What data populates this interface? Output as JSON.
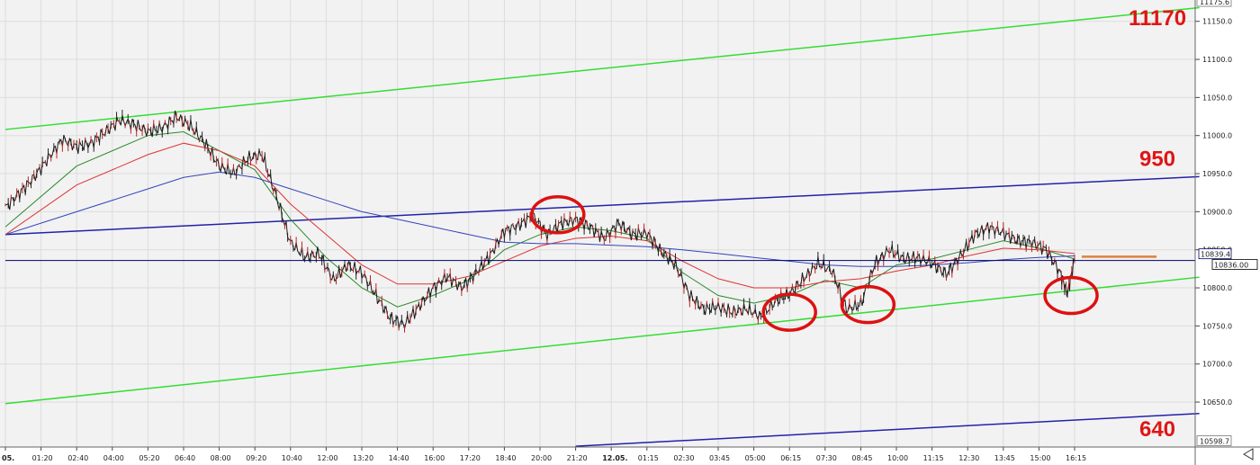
{
  "chart_data": {
    "type": "line",
    "title": "",
    "xlabel": "",
    "ylabel": "",
    "ylim": [
      10591,
      11178
    ],
    "y_ticks": [
      11150,
      11100,
      11050,
      11000,
      10950,
      10900,
      10850,
      10800,
      10750,
      10700,
      10650
    ],
    "y_tick_labels": [
      "11150.0",
      "11100.0",
      "11050.0",
      "11000.0",
      "10950.0",
      "10900.0",
      "10850.0",
      "10800.0",
      "10750.0",
      "10700.0",
      "10650.0"
    ],
    "y_axis_extremes": [
      {
        "label": "11175.6",
        "y": 11175.6
      },
      {
        "label": "10598.7",
        "y": 10598.7
      }
    ],
    "price_markers": [
      {
        "label": "10839.4",
        "y": 10839.4,
        "color": "#000066"
      },
      {
        "label": "10836.00",
        "y": 10836.0,
        "color": "#000000"
      }
    ],
    "x_tick_labels": [
      "05.",
      "01:20",
      "02:40",
      "04:00",
      "05:20",
      "06:40",
      "08:00",
      "09:20",
      "10:40",
      "12:00",
      "13:20",
      "14:40",
      "16:00",
      "17:20",
      "18:40",
      "20:00",
      "21:20",
      "12.05.",
      "01:15",
      "02:30",
      "03:45",
      "05:00",
      "06:15",
      "07:30",
      "08:45",
      "10:00",
      "11:15",
      "12:30",
      "13:45",
      "15:00",
      "16:15"
    ],
    "x_tick_index": [
      0,
      1,
      2,
      3,
      4,
      5,
      6,
      7,
      8,
      9,
      10,
      11,
      12,
      13,
      14,
      15,
      16,
      17,
      18,
      19,
      20,
      21,
      22,
      23,
      24,
      25,
      26,
      27,
      28,
      29,
      30
    ],
    "x_range": [
      0,
      33.5
    ],
    "price_series": [
      [
        0,
        10905
      ],
      [
        0.4,
        10925
      ],
      [
        0.8,
        10945
      ],
      [
        1.2,
        10970
      ],
      [
        1.6,
        10995
      ],
      [
        2.0,
        10985
      ],
      [
        2.4,
        10990
      ],
      [
        2.8,
        11005
      ],
      [
        3.2,
        11020
      ],
      [
        3.6,
        11015
      ],
      [
        4.0,
        11005
      ],
      [
        4.4,
        11010
      ],
      [
        4.8,
        11025
      ],
      [
        5.2,
        11012
      ],
      [
        5.6,
        10990
      ],
      [
        6.0,
        10960
      ],
      [
        6.4,
        10950
      ],
      [
        6.8,
        10970
      ],
      [
        7.2,
        10975
      ],
      [
        7.6,
        10920
      ],
      [
        8.0,
        10860
      ],
      [
        8.4,
        10840
      ],
      [
        8.8,
        10845
      ],
      [
        9.2,
        10810
      ],
      [
        9.6,
        10830
      ],
      [
        10.0,
        10820
      ],
      [
        10.4,
        10790
      ],
      [
        10.8,
        10760
      ],
      [
        11.2,
        10752
      ],
      [
        11.6,
        10775
      ],
      [
        12.0,
        10800
      ],
      [
        12.4,
        10815
      ],
      [
        12.8,
        10800
      ],
      [
        13.2,
        10820
      ],
      [
        13.6,
        10842
      ],
      [
        14.0,
        10875
      ],
      [
        14.4,
        10882
      ],
      [
        14.8,
        10895
      ],
      [
        15.2,
        10870
      ],
      [
        15.6,
        10885
      ],
      [
        16.0,
        10890
      ],
      [
        16.4,
        10880
      ],
      [
        16.8,
        10865
      ],
      [
        17.2,
        10885
      ],
      [
        17.6,
        10870
      ],
      [
        18.0,
        10872
      ],
      [
        18.4,
        10848
      ],
      [
        18.8,
        10830
      ],
      [
        19.2,
        10790
      ],
      [
        19.6,
        10772
      ],
      [
        20.0,
        10775
      ],
      [
        20.4,
        10768
      ],
      [
        20.8,
        10772
      ],
      [
        21.2,
        10762
      ],
      [
        21.6,
        10782
      ],
      [
        22.0,
        10792
      ],
      [
        22.4,
        10812
      ],
      [
        22.8,
        10832
      ],
      [
        23.2,
        10822
      ],
      [
        23.6,
        10772
      ],
      [
        24.0,
        10778
      ],
      [
        24.4,
        10832
      ],
      [
        24.8,
        10850
      ],
      [
        25.2,
        10838
      ],
      [
        25.6,
        10840
      ],
      [
        26.0,
        10832
      ],
      [
        26.4,
        10818
      ],
      [
        26.8,
        10842
      ],
      [
        27.2,
        10870
      ],
      [
        27.6,
        10880
      ],
      [
        28.0,
        10872
      ],
      [
        28.4,
        10862
      ],
      [
        28.8,
        10860
      ],
      [
        29.2,
        10850
      ],
      [
        29.6,
        10820
      ],
      [
        29.8,
        10792
      ],
      [
        30.0,
        10838
      ]
    ],
    "moving_averages": [
      {
        "color": "#2a8a2a",
        "values": [
          [
            0,
            10880
          ],
          [
            2,
            10960
          ],
          [
            4,
            11000
          ],
          [
            5,
            11005
          ],
          [
            6,
            10980
          ],
          [
            7,
            10955
          ],
          [
            8,
            10890
          ],
          [
            9,
            10840
          ],
          [
            10,
            10800
          ],
          [
            11,
            10775
          ],
          [
            12,
            10790
          ],
          [
            13,
            10810
          ],
          [
            14,
            10850
          ],
          [
            15,
            10870
          ],
          [
            16,
            10880
          ],
          [
            17,
            10875
          ],
          [
            18,
            10865
          ],
          [
            19,
            10820
          ],
          [
            20,
            10790
          ],
          [
            21,
            10780
          ],
          [
            22,
            10790
          ],
          [
            23,
            10810
          ],
          [
            24,
            10800
          ],
          [
            25,
            10830
          ],
          [
            26,
            10838
          ],
          [
            27,
            10850
          ],
          [
            28,
            10862
          ],
          [
            29,
            10852
          ],
          [
            30,
            10838
          ]
        ]
      },
      {
        "color": "#dd3333",
        "values": [
          [
            0,
            10870
          ],
          [
            2,
            10935
          ],
          [
            4,
            10975
          ],
          [
            5,
            10990
          ],
          [
            6,
            10980
          ],
          [
            7,
            10960
          ],
          [
            8,
            10910
          ],
          [
            9,
            10870
          ],
          [
            10,
            10830
          ],
          [
            11,
            10805
          ],
          [
            12,
            10805
          ],
          [
            13,
            10815
          ],
          [
            14,
            10835
          ],
          [
            15,
            10855
          ],
          [
            16,
            10865
          ],
          [
            17,
            10868
          ],
          [
            18,
            10862
          ],
          [
            19,
            10835
          ],
          [
            20,
            10812
          ],
          [
            21,
            10800
          ],
          [
            22,
            10800
          ],
          [
            23,
            10808
          ],
          [
            24,
            10812
          ],
          [
            25,
            10822
          ],
          [
            26,
            10830
          ],
          [
            27,
            10842
          ],
          [
            28,
            10852
          ],
          [
            29,
            10850
          ],
          [
            30,
            10845
          ]
        ]
      },
      {
        "color": "#3344bb",
        "values": [
          [
            0,
            10870
          ],
          [
            2,
            10900
          ],
          [
            4,
            10930
          ],
          [
            5,
            10945
          ],
          [
            6,
            10952
          ],
          [
            7,
            10945
          ],
          [
            8,
            10930
          ],
          [
            9,
            10915
          ],
          [
            10,
            10900
          ],
          [
            11,
            10890
          ],
          [
            12,
            10880
          ],
          [
            13,
            10870
          ],
          [
            14,
            10860
          ],
          [
            15,
            10858
          ],
          [
            16,
            10858
          ],
          [
            17,
            10856
          ],
          [
            18,
            10854
          ],
          [
            19,
            10850
          ],
          [
            20,
            10845
          ],
          [
            21,
            10840
          ],
          [
            22,
            10835
          ],
          [
            23,
            10830
          ],
          [
            24,
            10828
          ],
          [
            25,
            10828
          ],
          [
            26,
            10830
          ],
          [
            27,
            10833
          ],
          [
            28,
            10837
          ],
          [
            29,
            10840
          ],
          [
            30,
            10842
          ]
        ]
      }
    ],
    "channel_lines": [
      {
        "color": "#33dd33",
        "points": [
          [
            0,
            11008
          ],
          [
            33.5,
            11168
          ]
        ]
      },
      {
        "color": "#33dd33",
        "points": [
          [
            0,
            10648
          ],
          [
            33.5,
            10814
          ]
        ]
      },
      {
        "color": "#2222aa",
        "points": [
          [
            0,
            10870
          ],
          [
            33.5,
            10946
          ]
        ]
      },
      {
        "color": "#2222aa",
        "points": [
          [
            16,
            10592
          ],
          [
            33.5,
            10635
          ]
        ]
      }
    ],
    "horizontal_lines": [
      {
        "color": "#000066",
        "y": 10836,
        "from": 0,
        "to": 33.5
      },
      {
        "color": "#e08040",
        "y": 10841,
        "from": 30.2,
        "to": 32.3
      }
    ],
    "annotations": [
      {
        "text": "11170",
        "y": 11145
      },
      {
        "text": "950",
        "y": 10960
      },
      {
        "text": "640",
        "y": 10605
      }
    ],
    "highlight_circles": [
      {
        "x": 15.5,
        "y": 10896
      },
      {
        "x": 22.0,
        "y": 10768
      },
      {
        "x": 24.2,
        "y": 10778
      },
      {
        "x": 29.9,
        "y": 10790
      }
    ],
    "grid": true
  }
}
